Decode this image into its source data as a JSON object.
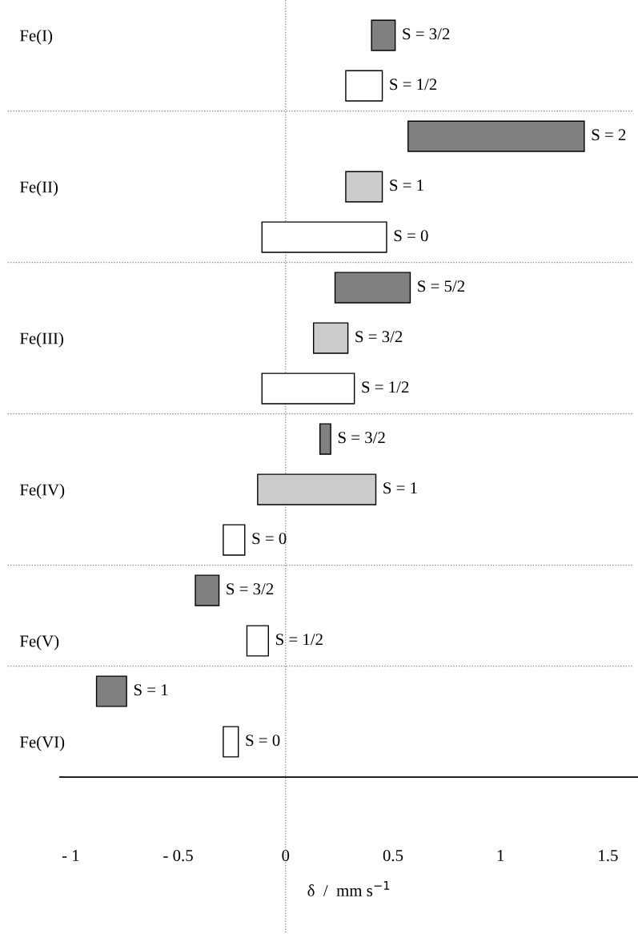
{
  "chart_data": {
    "type": "bar",
    "orientation": "horizontal",
    "xlabel": "δ  /  mm s$^{−1}$",
    "categories": [
      "Fe(I)",
      null,
      null,
      "Fe(II)",
      null,
      null,
      "Fe(III)",
      null,
      null,
      "Fe(IV)",
      null,
      null,
      "Fe(V)",
      null,
      "Fe(VI)"
    ],
    "base": [
      0.4,
      0.28,
      0.57,
      0.28,
      -0.11,
      0.23,
      0.13,
      -0.11,
      0.16,
      -0.13,
      -0.29,
      -0.42,
      -0.18,
      -0.88,
      -0.29
    ],
    "values": [
      0.11,
      0.17,
      0.82,
      0.17,
      0.58,
      0.35,
      0.16,
      0.43,
      0.05,
      0.55,
      0.1,
      0.11,
      0.1,
      0.14,
      0.07
    ],
    "colors": [
      "#808080",
      "#ffffff",
      "#808080",
      "#cccccc",
      "#ffffff",
      "#808080",
      "#cccccc",
      "#ffffff",
      "#808080",
      "#cccccc",
      "#ffffff",
      "#808080",
      "#ffffff",
      "#808080",
      "#ffffff"
    ],
    "annotations": [
      "S = 3/2",
      "S = 1/2",
      "S = 2",
      "S = 1",
      "S = 0",
      "S = 5/2",
      "S = 3/2",
      "S = 1/2",
      "S = 3/2",
      "S = 1",
      "S = 0",
      "S = 3/2",
      "S = 1/2",
      "S = 1",
      "S = 0"
    ],
    "xlim": [
      -1.05,
      1.64
    ],
    "xticks": [
      {
        "value": -1,
        "label": "- 1"
      },
      {
        "value": -0.5,
        "label": "- 0.5"
      },
      0,
      0.5,
      1,
      1.5
    ],
    "ref_lines": [
      {
        "axis": "x",
        "value": 0,
        "line_style": "dotted",
        "color": "#808080"
      }
    ],
    "grid": false,
    "legend": false
  }
}
